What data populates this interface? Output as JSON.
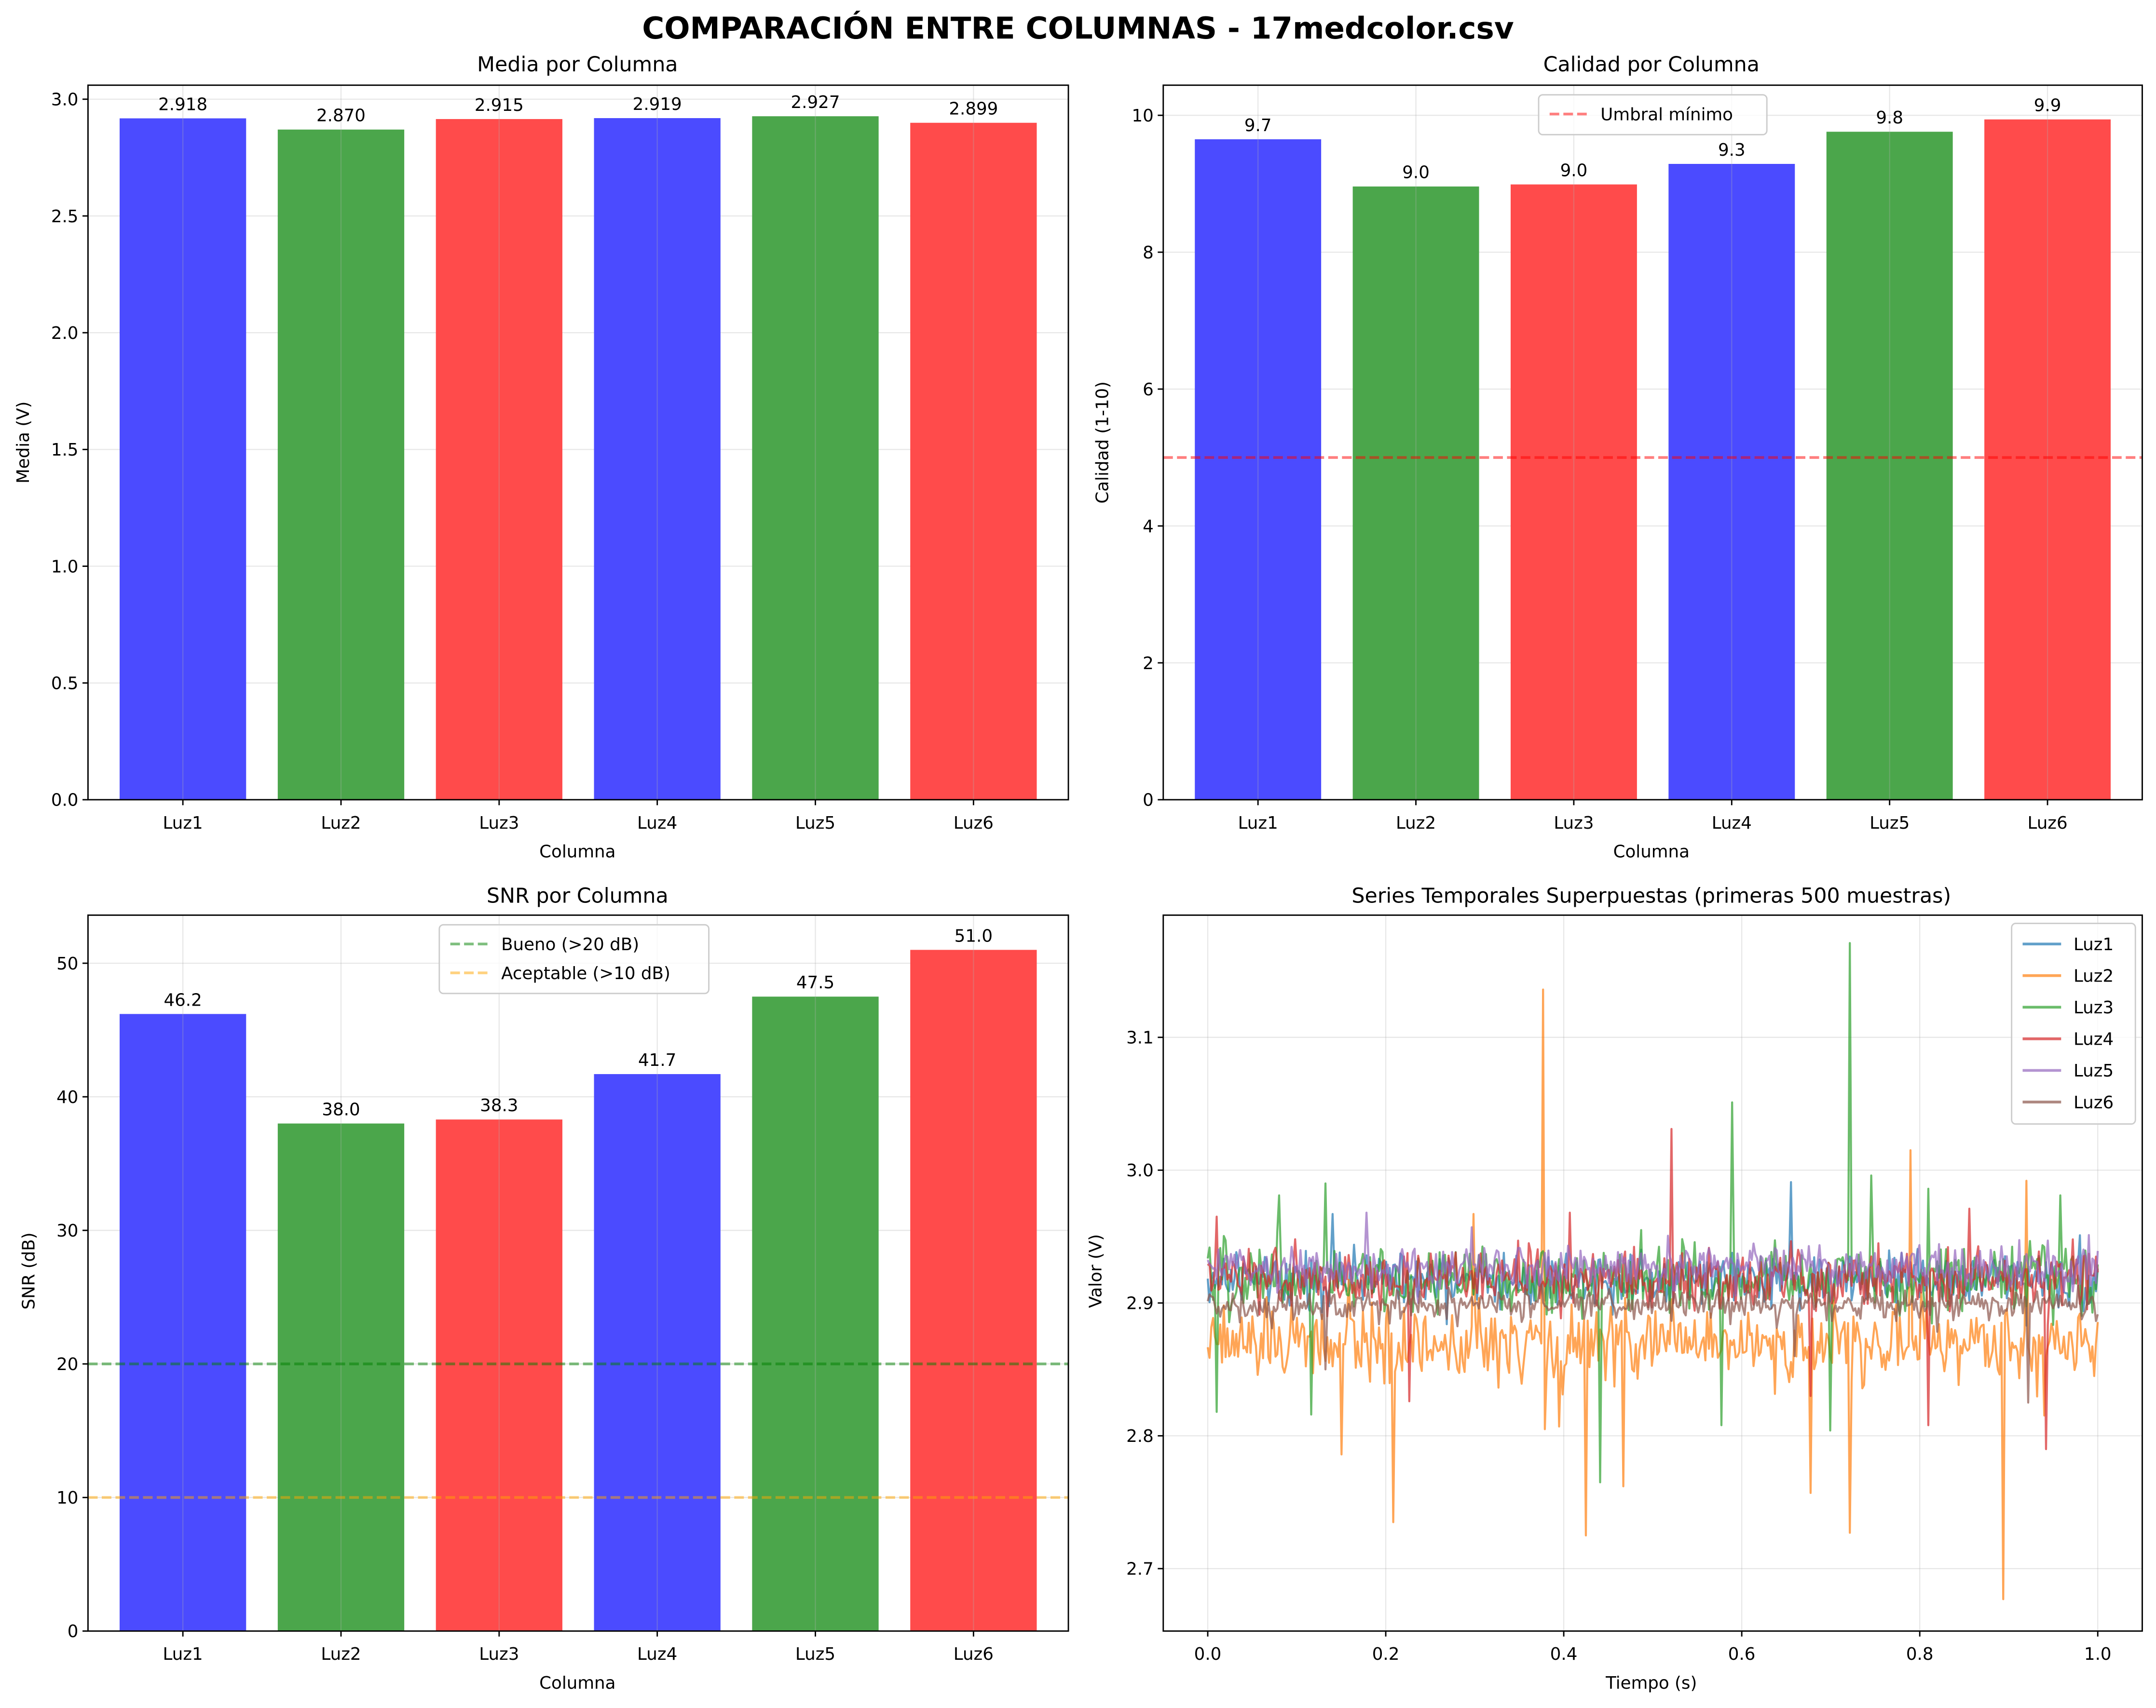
{
  "figure": {
    "suptitle": "COMPARACIÓN ENTRE COLUMNAS - 17medcolor.csv"
  },
  "chart_data": [
    {
      "type": "bar",
      "title": "Media por Columna",
      "xlabel": "Columna",
      "ylabel": "Media (V)",
      "categories": [
        "Luz1",
        "Luz2",
        "Luz3",
        "Luz4",
        "Luz5",
        "Luz6"
      ],
      "values": [
        2.918,
        2.87,
        2.915,
        2.919,
        2.927,
        2.899
      ],
      "labels": [
        "2.918",
        "2.870",
        "2.915",
        "2.919",
        "2.927",
        "2.899"
      ],
      "colors": [
        "#4b4bff",
        "#4ba64b",
        "#ff4b4b",
        "#4b4bff",
        "#4ba64b",
        "#ff4b4b"
      ],
      "ylim": [
        0,
        3.06
      ],
      "yticks": [
        0.0,
        0.5,
        1.0,
        1.5,
        2.0,
        2.5,
        3.0
      ],
      "ytick_labels": [
        "0.0",
        "0.5",
        "1.0",
        "1.5",
        "2.0",
        "2.5",
        "3.0"
      ],
      "grid": true,
      "hlines": [],
      "legend": null
    },
    {
      "type": "bar",
      "title": "Calidad por Columna",
      "xlabel": "Columna",
      "ylabel": "Calidad (1-10)",
      "categories": [
        "Luz1",
        "Luz2",
        "Luz3",
        "Luz4",
        "Luz5",
        "Luz6"
      ],
      "values": [
        9.65,
        8.96,
        8.99,
        9.29,
        9.76,
        9.94
      ],
      "labels": [
        "9.7",
        "9.0",
        "9.0",
        "9.3",
        "9.8",
        "9.9"
      ],
      "colors": [
        "#4b4bff",
        "#4ba64b",
        "#ff4b4b",
        "#4b4bff",
        "#4ba64b",
        "#ff4b4b"
      ],
      "ylim": [
        0,
        10.44
      ],
      "yticks": [
        0,
        2,
        4,
        6,
        8,
        10
      ],
      "ytick_labels": [
        "0",
        "2",
        "4",
        "6",
        "8",
        "10"
      ],
      "grid": true,
      "hlines": [
        {
          "y": 5,
          "color": "#ff0000",
          "opacity": 0.5,
          "label": "Umbral mínimo"
        }
      ],
      "legend": "upper-center"
    },
    {
      "type": "bar",
      "title": "SNR por Columna",
      "xlabel": "Columna",
      "ylabel": "SNR (dB)",
      "categories": [
        "Luz1",
        "Luz2",
        "Luz3",
        "Luz4",
        "Luz5",
        "Luz6"
      ],
      "values": [
        46.2,
        38.0,
        38.3,
        41.7,
        47.5,
        51.0
      ],
      "labels": [
        "46.2",
        "38.0",
        "38.3",
        "41.7",
        "47.5",
        "51.0"
      ],
      "colors": [
        "#4b4bff",
        "#4ba64b",
        "#ff4b4b",
        "#4b4bff",
        "#4ba64b",
        "#ff4b4b"
      ],
      "ylim": [
        0,
        53.6
      ],
      "yticks": [
        0,
        10,
        20,
        30,
        40,
        50
      ],
      "ytick_labels": [
        "0",
        "10",
        "20",
        "30",
        "40",
        "50"
      ],
      "grid": true,
      "hlines": [
        {
          "y": 20,
          "color": "#008000",
          "opacity": 0.5,
          "label": "Bueno (>20 dB)"
        },
        {
          "y": 10,
          "color": "#ffa500",
          "opacity": 0.5,
          "label": "Aceptable (>10 dB)"
        }
      ],
      "legend": "upper-center"
    },
    {
      "type": "line",
      "title": "Series Temporales Superpuestas (primeras 500 muestras)",
      "xlabel": "Tiempo (s)",
      "ylabel": "Valor (V)",
      "xlim": [
        -0.05,
        1.05
      ],
      "ylim": [
        2.653,
        3.192
      ],
      "xticks": [
        0.0,
        0.2,
        0.4,
        0.6,
        0.8,
        1.0
      ],
      "xtick_labels": [
        "0.0",
        "0.2",
        "0.4",
        "0.6",
        "0.8",
        "1.0"
      ],
      "yticks": [
        2.7,
        2.8,
        2.9,
        3.0,
        3.1
      ],
      "ytick_labels": [
        "2.7",
        "2.8",
        "2.9",
        "3.0",
        "3.1"
      ],
      "grid": true,
      "legend": "upper-right",
      "n_samples": 500,
      "series": [
        {
          "name": "Luz1",
          "color": "#1f77b4",
          "mean": 2.918,
          "noise": 0.01,
          "spikes": [
            [
              0.14,
              2.967
            ],
            [
              0.656,
              2.991
            ],
            [
              0.268,
              2.884
            ],
            [
              0.98,
              2.951
            ]
          ]
        },
        {
          "name": "Luz2",
          "color": "#ff7f0e",
          "mean": 2.87,
          "noise": 0.014,
          "spikes": [
            [
              0.376,
              3.136
            ],
            [
              0.209,
              2.735
            ],
            [
              0.425,
              2.725
            ],
            [
              0.722,
              2.727
            ],
            [
              0.893,
              2.677
            ],
            [
              0.79,
              3.015
            ],
            [
              0.92,
              2.992
            ],
            [
              0.15,
              2.786
            ],
            [
              0.678,
              2.757
            ],
            [
              0.467,
              2.762
            ],
            [
              0.378,
              2.805
            ],
            [
              0.395,
              2.807
            ],
            [
              0.298,
              2.967
            ]
          ]
        },
        {
          "name": "Luz3",
          "color": "#2ca02c",
          "mean": 2.918,
          "noise": 0.013,
          "spikes": [
            [
              0.722,
              3.171
            ],
            [
              0.59,
              3.051
            ],
            [
              0.132,
              2.99
            ],
            [
              0.01,
              2.818
            ],
            [
              0.117,
              2.816
            ],
            [
              0.44,
              2.765
            ],
            [
              0.578,
              2.808
            ],
            [
              0.7,
              2.804
            ],
            [
              0.958,
              2.981
            ],
            [
              0.081,
              2.981
            ],
            [
              0.745,
              2.996
            ],
            [
              0.81,
              2.986
            ]
          ]
        },
        {
          "name": "Luz4",
          "color": "#d62728",
          "mean": 2.918,
          "noise": 0.011,
          "spikes": [
            [
              0.522,
              3.031
            ],
            [
              0.942,
              2.79
            ],
            [
              0.227,
              2.826
            ],
            [
              0.677,
              2.83
            ],
            [
              0.81,
              2.808
            ],
            [
              0.011,
              2.965
            ],
            [
              0.406,
              2.968
            ],
            [
              0.856,
              2.971
            ]
          ]
        },
        {
          "name": "Luz5",
          "color": "#9467bd",
          "mean": 2.927,
          "noise": 0.008,
          "spikes": [
            [
              0.178,
              2.968
            ],
            [
              0.296,
              2.957
            ]
          ]
        },
        {
          "name": "Luz6",
          "color": "#8c564b",
          "mean": 2.899,
          "noise": 0.006,
          "spikes": [
            [
              0.922,
              2.825
            ],
            [
              0.132,
              2.85
            ],
            [
              0.66,
              2.86
            ]
          ]
        }
      ]
    }
  ]
}
